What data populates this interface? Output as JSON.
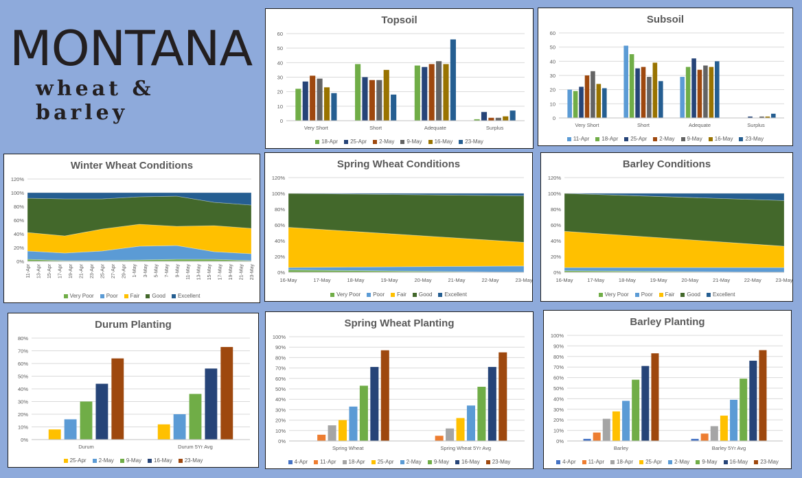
{
  "logo": {
    "line1": "MONTANA",
    "line2": "wheat & barley"
  },
  "colors": {
    "background": "#8eaadb"
  },
  "chart_data": [
    {
      "id": "topsoil",
      "type": "bar",
      "title": "Topsoil",
      "categories": [
        "Very Short",
        "Short",
        "Adequate",
        "Surplus"
      ],
      "ylim": [
        0,
        60
      ],
      "yticks": [
        0,
        10,
        20,
        30,
        40,
        50,
        60
      ],
      "yformat": "number",
      "grid": true,
      "legend": "bottom",
      "series": [
        {
          "name": "18-Apr",
          "color": "#70ad47",
          "values": [
            22,
            39,
            38,
            1
          ]
        },
        {
          "name": "25-Apr",
          "color": "#264478",
          "values": [
            27,
            30,
            37,
            6
          ]
        },
        {
          "name": "2-May",
          "color": "#9e480e",
          "values": [
            31,
            28,
            39,
            2
          ]
        },
        {
          "name": "9-May",
          "color": "#636363",
          "values": [
            29,
            28,
            41,
            2
          ]
        },
        {
          "name": "16-May",
          "color": "#997300",
          "values": [
            23,
            35,
            39,
            3
          ]
        },
        {
          "name": "23-May",
          "color": "#255e91",
          "values": [
            19,
            18,
            56,
            7
          ]
        }
      ]
    },
    {
      "id": "subsoil",
      "type": "bar",
      "title": "Subsoil",
      "categories": [
        "Very Short",
        "Short",
        "Adequate",
        "Surplus"
      ],
      "ylim": [
        0,
        60
      ],
      "yticks": [
        0,
        10,
        20,
        30,
        40,
        50,
        60
      ],
      "yformat": "number",
      "grid": true,
      "legend": "bottom",
      "series": [
        {
          "name": "11-Apr",
          "color": "#5b9bd5",
          "values": [
            20,
            51,
            29,
            0
          ]
        },
        {
          "name": "18-Apr",
          "color": "#70ad47",
          "values": [
            19,
            45,
            36,
            0
          ]
        },
        {
          "name": "25-Apr",
          "color": "#264478",
          "values": [
            22,
            35,
            42,
            1
          ]
        },
        {
          "name": "2-May",
          "color": "#9e480e",
          "values": [
            30,
            36,
            34,
            0
          ]
        },
        {
          "name": "9-May",
          "color": "#636363",
          "values": [
            33,
            29,
            37,
            1
          ]
        },
        {
          "name": "16-May",
          "color": "#997300",
          "values": [
            24,
            39,
            36,
            1
          ]
        },
        {
          "name": "23-May",
          "color": "#255e91",
          "values": [
            21,
            26,
            40,
            3
          ]
        }
      ]
    },
    {
      "id": "winter",
      "type": "area",
      "stacked": true,
      "title": "Winter Wheat Conditions",
      "x": [
        "11-Apr",
        "18-Apr",
        "25-Apr",
        "2-May",
        "9-May",
        "16-May",
        "23-May"
      ],
      "xticks": [
        "11-Apr",
        "13-Apr",
        "15-Apr",
        "17-Apr",
        "19-Apr",
        "21-Apr",
        "23-Apr",
        "25-Apr",
        "27-Apr",
        "29-Apr",
        "1-May",
        "3-May",
        "5-May",
        "7-May",
        "9-May",
        "11-May",
        "13-May",
        "15-May",
        "17-May",
        "19-May",
        "21-May",
        "23-May"
      ],
      "xticks_rotated": true,
      "ylim": [
        0,
        120
      ],
      "yticks": [
        0,
        20,
        40,
        60,
        80,
        100,
        120
      ],
      "yformat": "percent",
      "grid": true,
      "legend": "bottom",
      "series": [
        {
          "name": "Very Poor",
          "color": "#70ad47",
          "values": [
            3,
            1,
            1,
            2,
            3,
            3,
            1
          ]
        },
        {
          "name": "Poor",
          "color": "#5b9bd5",
          "values": [
            12,
            11,
            14,
            20,
            20,
            11,
            10
          ]
        },
        {
          "name": "Fair",
          "color": "#ffc000",
          "values": [
            27,
            25,
            32,
            32,
            28,
            38,
            37
          ]
        },
        {
          "name": "Good",
          "color": "#43682b",
          "values": [
            50,
            54,
            44,
            40,
            44,
            34,
            34
          ]
        },
        {
          "name": "Excellent",
          "color": "#255e91",
          "values": [
            8,
            9,
            9,
            6,
            5,
            14,
            18
          ]
        }
      ]
    },
    {
      "id": "spring",
      "type": "area",
      "stacked": true,
      "title": "Spring Wheat Conditions",
      "x": [
        "16-May",
        "23-May"
      ],
      "xticks": [
        "16-May",
        "17-May",
        "18-May",
        "19-May",
        "20-May",
        "21-May",
        "22-May",
        "23-May"
      ],
      "xticks_rotated": false,
      "ylim": [
        0,
        120
      ],
      "yticks": [
        0,
        20,
        40,
        60,
        80,
        100,
        120
      ],
      "yformat": "percent",
      "grid": true,
      "legend": "bottom",
      "series": [
        {
          "name": "Very Poor",
          "color": "#70ad47",
          "values": [
            3,
            0
          ]
        },
        {
          "name": "Poor",
          "color": "#5b9bd5",
          "values": [
            3,
            8
          ]
        },
        {
          "name": "Fair",
          "color": "#ffc000",
          "values": [
            51,
            30
          ]
        },
        {
          "name": "Good",
          "color": "#43682b",
          "values": [
            43,
            59
          ]
        },
        {
          "name": "Excellent",
          "color": "#255e91",
          "values": [
            0,
            3
          ]
        }
      ]
    },
    {
      "id": "barleycond",
      "type": "area",
      "stacked": true,
      "title": "Barley Conditions",
      "x": [
        "16-May",
        "23-May"
      ],
      "xticks": [
        "16-May",
        "17-May",
        "18-May",
        "19-May",
        "20-May",
        "21-May",
        "22-May",
        "23-May"
      ],
      "xticks_rotated": false,
      "ylim": [
        0,
        120
      ],
      "yticks": [
        0,
        20,
        40,
        60,
        80,
        100,
        120
      ],
      "yformat": "percent",
      "grid": true,
      "legend": "bottom",
      "series": [
        {
          "name": "Very Poor",
          "color": "#70ad47",
          "values": [
            2,
            0
          ]
        },
        {
          "name": "Poor",
          "color": "#5b9bd5",
          "values": [
            4,
            6
          ]
        },
        {
          "name": "Fair",
          "color": "#ffc000",
          "values": [
            46,
            27
          ]
        },
        {
          "name": "Good",
          "color": "#43682b",
          "values": [
            48,
            58
          ]
        },
        {
          "name": "Excellent",
          "color": "#255e91",
          "values": [
            0,
            9
          ]
        }
      ]
    },
    {
      "id": "durum",
      "type": "bar",
      "title": "Durum Planting",
      "categories": [
        "Durum",
        "Durum 5Yr Avg"
      ],
      "ylim": [
        0,
        80
      ],
      "yticks": [
        0,
        10,
        20,
        30,
        40,
        50,
        60,
        70,
        80
      ],
      "yformat": "percent",
      "grid": true,
      "legend": "bottom",
      "series": [
        {
          "name": "25-Apr",
          "color": "#ffc000",
          "values": [
            8,
            12
          ]
        },
        {
          "name": "2-May",
          "color": "#5b9bd5",
          "values": [
            16,
            20
          ]
        },
        {
          "name": "9-May",
          "color": "#70ad47",
          "values": [
            30,
            36
          ]
        },
        {
          "name": "16-May",
          "color": "#264478",
          "values": [
            44,
            56
          ]
        },
        {
          "name": "23-May",
          "color": "#9e480e",
          "values": [
            64,
            73
          ]
        }
      ]
    },
    {
      "id": "swplant",
      "type": "bar",
      "title": "Spring Wheat Planting",
      "categories": [
        "Spring Wheat",
        "Spring Wheat 5Yr Avg"
      ],
      "ylim": [
        0,
        100
      ],
      "yticks": [
        0,
        10,
        20,
        30,
        40,
        50,
        60,
        70,
        80,
        90,
        100
      ],
      "yformat": "percent",
      "grid": true,
      "legend": "bottom",
      "series": [
        {
          "name": "4-Apr",
          "color": "#4472c4",
          "values": [
            0,
            0
          ]
        },
        {
          "name": "11-Apr",
          "color": "#ed7d31",
          "values": [
            6,
            5
          ]
        },
        {
          "name": "18-Apr",
          "color": "#a5a5a5",
          "values": [
            15,
            12
          ]
        },
        {
          "name": "25-Apr",
          "color": "#ffc000",
          "values": [
            20,
            22
          ]
        },
        {
          "name": "2-May",
          "color": "#5b9bd5",
          "values": [
            33,
            34
          ]
        },
        {
          "name": "9-May",
          "color": "#70ad47",
          "values": [
            53,
            52
          ]
        },
        {
          "name": "16-May",
          "color": "#264478",
          "values": [
            71,
            71
          ]
        },
        {
          "name": "23-May",
          "color": "#9e480e",
          "values": [
            87,
            85
          ]
        }
      ]
    },
    {
      "id": "bplant",
      "type": "bar",
      "title": "Barley Planting",
      "categories": [
        "Barley",
        "Barley 5Yr Avg"
      ],
      "ylim": [
        0,
        100
      ],
      "yticks": [
        0,
        10,
        20,
        30,
        40,
        50,
        60,
        70,
        80,
        90,
        100
      ],
      "yformat": "percent",
      "grid": true,
      "legend": "bottom",
      "series": [
        {
          "name": "4-Apr",
          "color": "#4472c4",
          "values": [
            2,
            2
          ]
        },
        {
          "name": "11-Apr",
          "color": "#ed7d31",
          "values": [
            8,
            7
          ]
        },
        {
          "name": "18-Apr",
          "color": "#a5a5a5",
          "values": [
            21,
            14
          ]
        },
        {
          "name": "25-Apr",
          "color": "#ffc000",
          "values": [
            28,
            24
          ]
        },
        {
          "name": "2-May",
          "color": "#5b9bd5",
          "values": [
            38,
            39
          ]
        },
        {
          "name": "9-May",
          "color": "#70ad47",
          "values": [
            58,
            59
          ]
        },
        {
          "name": "16-May",
          "color": "#264478",
          "values": [
            71,
            76
          ]
        },
        {
          "name": "23-May",
          "color": "#9e480e",
          "values": [
            83,
            86
          ]
        }
      ]
    }
  ]
}
